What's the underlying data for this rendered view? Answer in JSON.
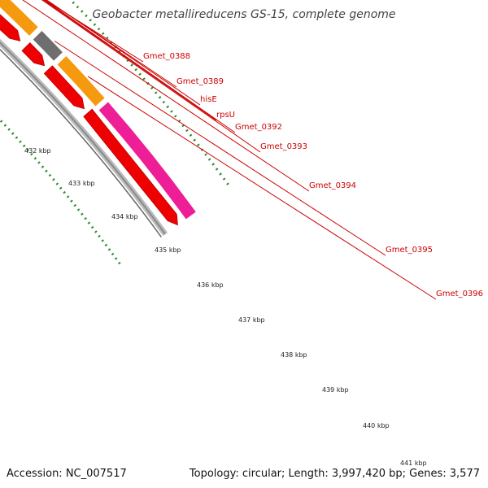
{
  "title": "Geobacter metallireducens GS-15, complete genome",
  "footer": {
    "accession": "Accession: NC_007517",
    "summary": "Topology: circular; Length: 3,997,420 bp; Genes: 3,577"
  },
  "scale_labels": [
    "432 kbp",
    "433 kbp",
    "434 kbp",
    "435 kbp",
    "436 kbp",
    "437 kbp",
    "438 kbp",
    "439 kbp",
    "440 kbp",
    "441 kbp"
  ],
  "gene_labels": [
    "Gmet_0388",
    "Gmet_0389",
    "hisE",
    "rpsU",
    "Gmet_0392",
    "Gmet_0393",
    "Gmet_0394",
    "Gmet_0395",
    "Gmet_0396"
  ],
  "colors": {
    "cds": "#ee0000",
    "blue": "#4f86bd",
    "pink_light": "#f08080",
    "dark_gray": "#6e6e6e",
    "light_gray": "#c8c8c8",
    "magenta": "#ee1e96",
    "orange": "#f59a0e",
    "backbone": "#8a8a8a",
    "tick": "#2e8b2e",
    "label": "#cc0000"
  }
}
